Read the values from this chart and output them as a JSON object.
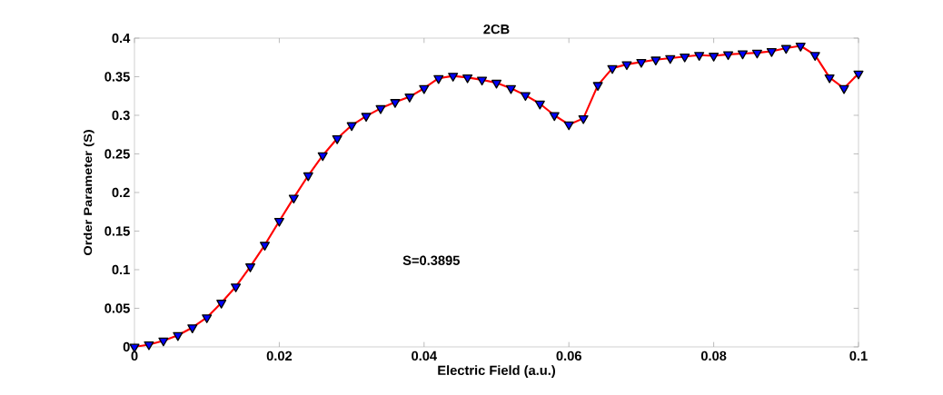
{
  "chart_data": {
    "type": "line",
    "title": "2CB",
    "xlabel": "Electric Field (a.u.)",
    "ylabel": "Order Parameter (S)",
    "annotations": [
      "S=0.3895"
    ],
    "x": [
      0,
      0.002,
      0.004,
      0.006,
      0.008,
      0.01,
      0.012,
      0.014,
      0.016,
      0.018,
      0.02,
      0.022,
      0.024,
      0.026,
      0.028,
      0.03,
      0.032,
      0.034,
      0.036,
      0.038,
      0.04,
      0.042,
      0.044,
      0.046,
      0.048,
      0.05,
      0.052,
      0.054,
      0.056,
      0.058,
      0.06,
      0.062,
      0.064,
      0.066,
      0.068,
      0.07,
      0.072,
      0.074,
      0.076,
      0.078,
      0.08,
      0.082,
      0.084,
      0.086,
      0.088,
      0.09,
      0.092,
      0.094,
      0.096,
      0.098,
      0.1
    ],
    "series": [
      {
        "color": "#ff0000",
        "values": [
          0,
          0.003,
          0.008,
          0.015,
          0.025,
          0.038,
          0.057,
          0.078,
          0.104,
          0.132,
          0.163,
          0.193,
          0.222,
          0.248,
          0.27,
          0.287,
          0.299,
          0.309,
          0.317,
          0.324,
          0.335,
          0.348,
          0.351,
          0.349,
          0.346,
          0.342,
          0.335,
          0.326,
          0.315,
          0.3,
          0.288,
          0.296,
          0.339,
          0.361,
          0.366,
          0.369,
          0.372,
          0.374,
          0.376,
          0.378,
          0.377,
          0.379,
          0.38,
          0.381,
          0.383,
          0.387,
          0.39,
          0.378,
          0.349,
          0.335,
          0.354
        ]
      }
    ],
    "marker": "triangle",
    "line_style": "solid",
    "grid": false,
    "xlim": [
      0,
      0.1
    ],
    "xticks": [
      0,
      0.02,
      0.04,
      0.06,
      0.08,
      0.1
    ],
    "ylim": [
      0,
      0.4
    ],
    "yticks": [
      0,
      0.05,
      0.1,
      0.15,
      0.2,
      0.25,
      0.3,
      0.35,
      0.4
    ]
  }
}
